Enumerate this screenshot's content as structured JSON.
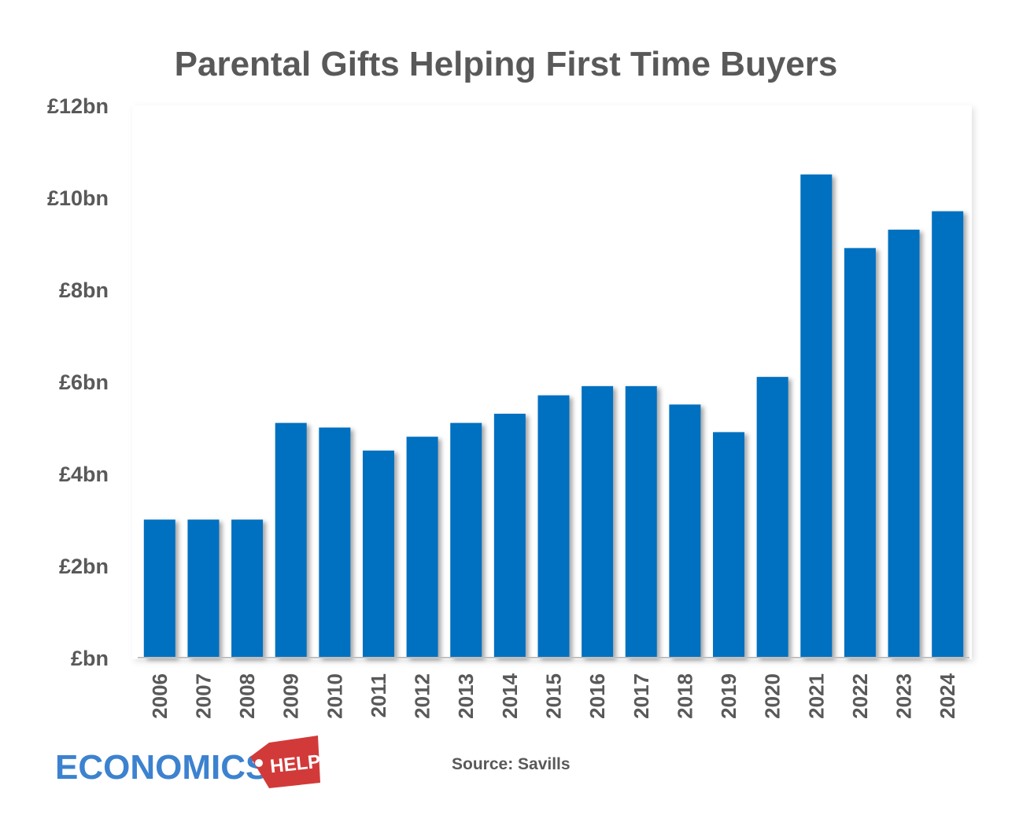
{
  "chart_data": {
    "type": "bar",
    "title": "Parental Gifts Helping First Time Buyers",
    "xlabel": "",
    "ylabel": "",
    "categories": [
      "2006",
      "2007",
      "2008",
      "2009",
      "2010",
      "2011",
      "2012",
      "2013",
      "2014",
      "2015",
      "2016",
      "2017",
      "2018",
      "2019",
      "2020",
      "2021",
      "2022",
      "2023",
      "2024"
    ],
    "values": [
      3.0,
      3.0,
      3.0,
      5.1,
      5.0,
      4.5,
      4.8,
      5.1,
      5.3,
      5.7,
      5.9,
      5.9,
      5.5,
      4.9,
      6.1,
      10.5,
      8.9,
      9.3,
      9.7
    ],
    "ylim": [
      0,
      12
    ],
    "yticks": [
      0,
      2,
      4,
      6,
      8,
      10,
      12
    ],
    "ytick_labels": [
      "£bn",
      "£2bn",
      "£4bn",
      "£6bn",
      "£8bn",
      "£10bn",
      "£12bn"
    ],
    "grid": false,
    "bar_color": "#0070c0",
    "text_color": "#595959"
  },
  "source": "Source: Savills",
  "logo": {
    "main": "ECONOMICS",
    "tag": "HELP",
    "main_color": "#3c82cf",
    "tag_color": "#d23a3a"
  }
}
